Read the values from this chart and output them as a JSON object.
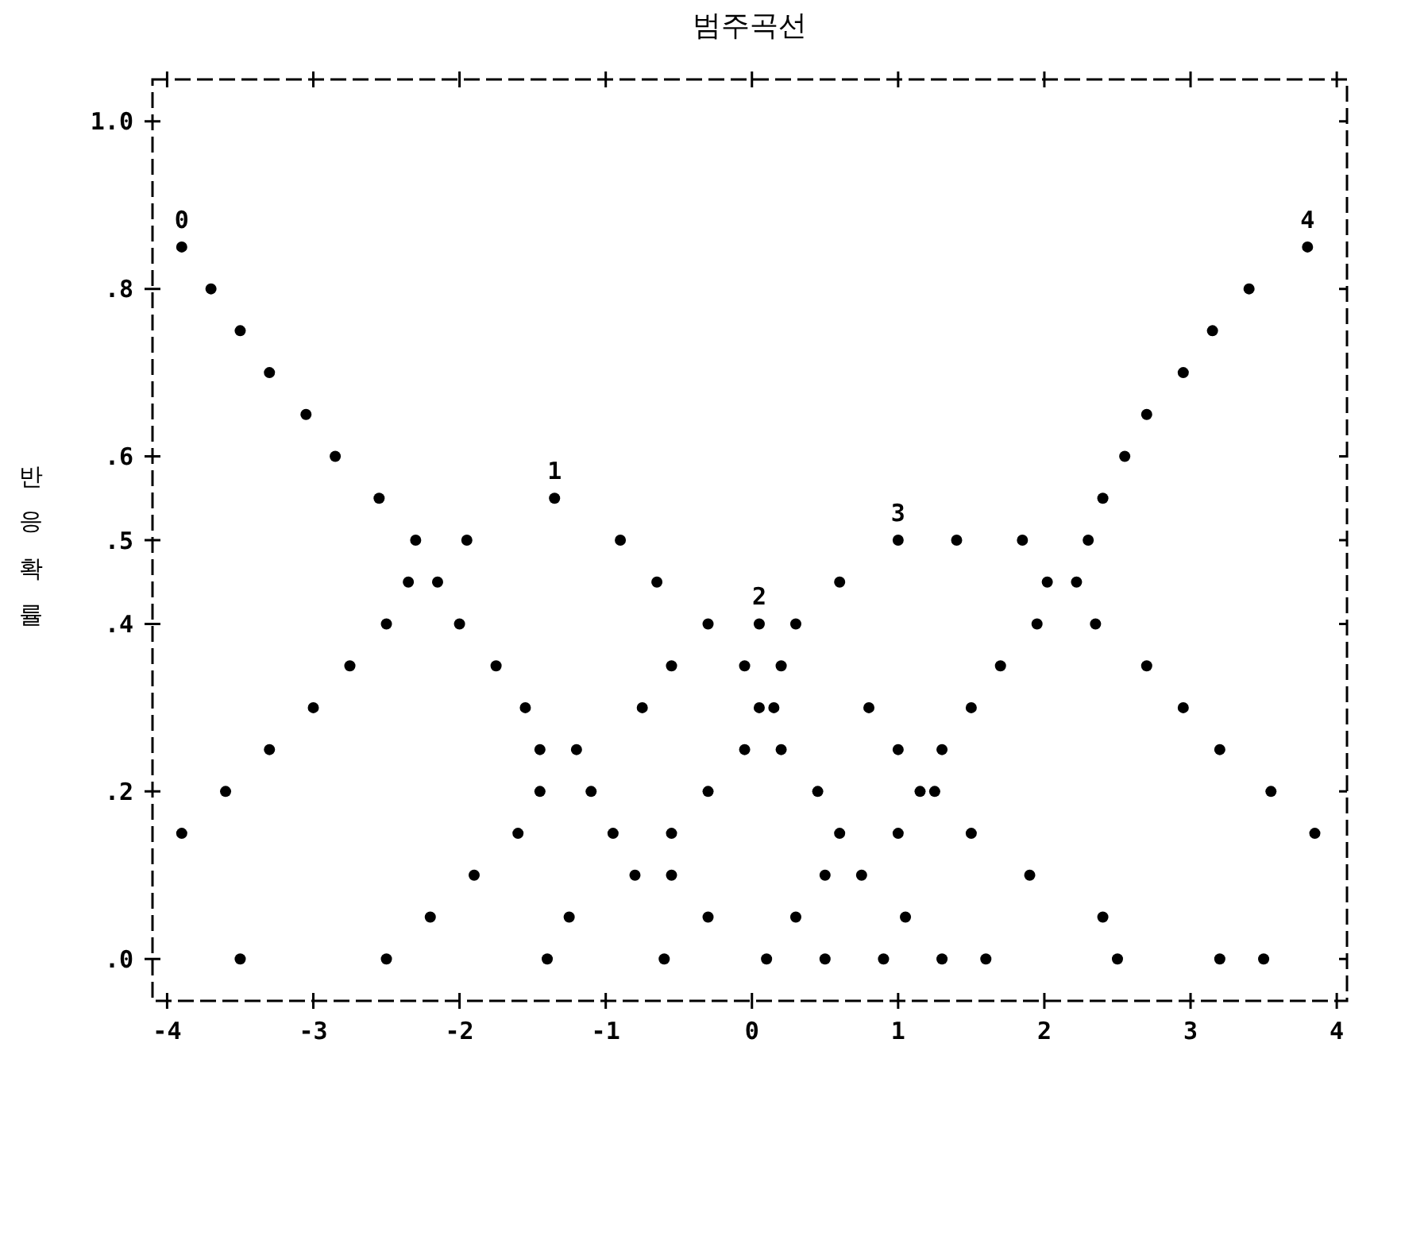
{
  "chart_data": {
    "type": "scatter",
    "title": "범주곡선",
    "ylabel": "반응확률",
    "xlim": [
      -4.1,
      4.07
    ],
    "ylim": [
      -0.05,
      1.05
    ],
    "xticks": [
      -4,
      -3,
      -2,
      -1,
      0,
      1,
      2,
      3,
      4
    ],
    "yticks": [
      {
        "value": 0,
        "label": ".0"
      },
      {
        "value": 0.2,
        "label": ".2"
      },
      {
        "value": 0.4,
        "label": ".4"
      },
      {
        "value": 0.5,
        "label": ".5"
      },
      {
        "value": 0.6,
        "label": ".6"
      },
      {
        "value": 0.8,
        "label": ".8"
      },
      {
        "value": 1,
        "label": "1.0"
      }
    ],
    "grid": false,
    "legend": false,
    "marker": "circle",
    "series": [
      {
        "name": "0",
        "color": "#000000",
        "x": [
          -3.9,
          -3.7,
          -3.5,
          -3.3,
          -3.05,
          -2.85,
          -2.55,
          -2.3,
          -2.15,
          -2.0,
          -1.75,
          -1.55,
          -1.45,
          -1.1,
          -0.95,
          -0.55,
          -0.3,
          0.1,
          0.5,
          0.9,
          1.3
        ],
        "values": [
          0.85,
          0.8,
          0.75,
          0.7,
          0.65,
          0.6,
          0.55,
          0.5,
          0.45,
          0.4,
          0.35,
          0.3,
          0.25,
          0.2,
          0.15,
          0.1,
          0.05,
          0,
          0,
          0,
          0
        ]
      },
      {
        "name": "1",
        "color": "#000000",
        "x": [
          -3.9,
          -3.6,
          -3.3,
          -3.0,
          -2.75,
          -2.5,
          -2.35,
          -1.95,
          -1.35,
          -0.9,
          -0.65,
          -0.3,
          -0.05,
          0.05,
          0.2,
          0.45,
          0.6,
          0.75,
          1.05,
          1.6,
          2.5,
          3.5
        ],
        "values": [
          0.15,
          0.2,
          0.25,
          0.3,
          0.35,
          0.4,
          0.45,
          0.5,
          0.55,
          0.5,
          0.45,
          0.4,
          0.35,
          0.3,
          0.25,
          0.2,
          0.15,
          0.1,
          0.05,
          0,
          0,
          0
        ]
      },
      {
        "name": "2",
        "color": "#000000",
        "x": [
          -3.5,
          -2.2,
          -1.9,
          -1.6,
          -1.45,
          -1.2,
          -0.75,
          -0.55,
          0.05,
          0.2,
          0.8,
          1.0,
          1.25,
          1.5,
          1.9,
          2.4,
          3.2
        ],
        "values": [
          0,
          0.05,
          0.1,
          0.15,
          0.2,
          0.25,
          0.3,
          0.35,
          0.4,
          0.35,
          0.3,
          0.25,
          0.2,
          0.15,
          0.1,
          0.05,
          0
        ]
      },
      {
        "name": "3",
        "color": "#000000",
        "x": [
          -2.5,
          -1.25,
          -0.8,
          -0.55,
          -0.3,
          -0.05,
          0.15,
          0.3,
          0.6,
          1.0,
          1.4,
          1.85,
          2.02,
          2.35,
          2.7,
          2.95,
          3.2,
          3.55,
          3.85
        ],
        "values": [
          0,
          0.05,
          0.1,
          0.15,
          0.2,
          0.25,
          0.3,
          0.4,
          0.45,
          0.5,
          0.5,
          0.5,
          0.45,
          0.4,
          0.35,
          0.3,
          0.25,
          0.2,
          0.15
        ]
      },
      {
        "name": "4",
        "color": "#000000",
        "x": [
          -1.4,
          -0.6,
          0.3,
          0.5,
          1.0,
          1.15,
          1.3,
          1.5,
          1.7,
          1.95,
          2.22,
          2.3,
          2.4,
          2.55,
          2.7,
          2.95,
          3.15,
          3.4,
          3.8
        ],
        "values": [
          0,
          0,
          0.05,
          0.1,
          0.15,
          0.2,
          0.25,
          0.3,
          0.35,
          0.4,
          0.45,
          0.5,
          0.55,
          0.6,
          0.65,
          0.7,
          0.75,
          0.8,
          0.85
        ]
      }
    ]
  }
}
